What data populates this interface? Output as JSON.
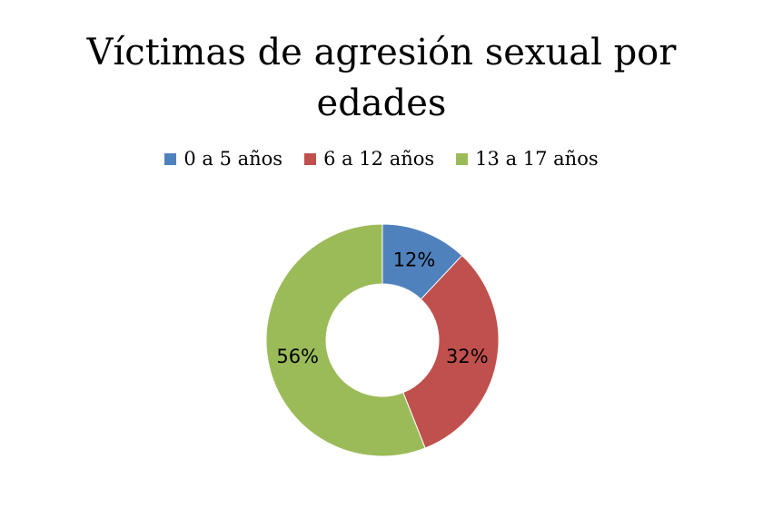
{
  "chart_data": {
    "type": "pie",
    "variant": "doughnut",
    "title_lines": [
      "Víctimas de agresión sexual por",
      "edades"
    ],
    "categories": [
      "0 a 5 años",
      "6 a 12 años",
      "13 a 17 años"
    ],
    "values": [
      12,
      32,
      56
    ],
    "labels": [
      "12%",
      "32%",
      "56%"
    ],
    "colors": [
      "#4F81BD",
      "#C0504D",
      "#9BBB59"
    ],
    "legend_position": "top"
  }
}
